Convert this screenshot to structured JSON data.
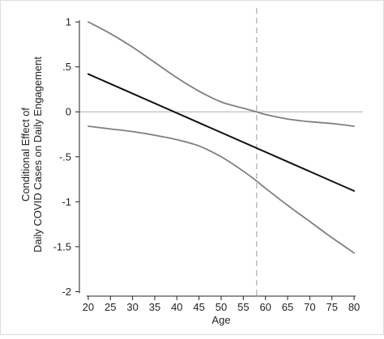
{
  "chart_data": {
    "type": "line",
    "title": "",
    "xlabel": "Age",
    "ylabel_lines": [
      "Conditional Effect of",
      "Daily COVID Cases on Daily Engagement"
    ],
    "xlim": [
      18,
      82
    ],
    "ylim": [
      -2.05,
      1.1
    ],
    "x_ticks": [
      20,
      25,
      30,
      35,
      40,
      45,
      50,
      55,
      60,
      65,
      70,
      75,
      80
    ],
    "x_tick_labels": [
      "20",
      "25",
      "30",
      "35",
      "40",
      "45",
      "50",
      "55",
      "60",
      "65",
      "70",
      "75",
      "80"
    ],
    "y_ticks": [
      1,
      0.5,
      0,
      -0.5,
      -1,
      -1.5,
      -2
    ],
    "y_tick_labels": [
      "1",
      ".5",
      "0",
      "-.5",
      "-1",
      "-1.5",
      "-2"
    ],
    "reference_lines": {
      "horizontal_y": 0,
      "vertical_x": 58
    },
    "series": [
      {
        "role": "estimate",
        "color": "#111111",
        "x": [
          20,
          80
        ],
        "y": [
          0.42,
          -0.88
        ]
      },
      {
        "role": "upper_bound",
        "color": "#7f7f7f",
        "x": [
          20,
          25,
          30,
          35,
          40,
          45,
          50,
          55,
          58,
          60,
          65,
          70,
          75,
          80
        ],
        "y": [
          1.0,
          0.87,
          0.72,
          0.55,
          0.38,
          0.23,
          0.11,
          0.04,
          0.0,
          -0.03,
          -0.08,
          -0.11,
          -0.13,
          -0.16
        ]
      },
      {
        "role": "lower_bound",
        "color": "#7f7f7f",
        "x": [
          20,
          25,
          30,
          35,
          40,
          45,
          50,
          55,
          58,
          60,
          65,
          70,
          75,
          80
        ],
        "y": [
          -0.16,
          -0.19,
          -0.22,
          -0.26,
          -0.31,
          -0.38,
          -0.5,
          -0.66,
          -0.77,
          -0.85,
          -1.04,
          -1.22,
          -1.4,
          -1.57
        ]
      }
    ],
    "grid": false,
    "legend": "none",
    "colors": {
      "reference": "#bdbdbd",
      "axis": "#222222",
      "frame": "#dddddd"
    }
  }
}
